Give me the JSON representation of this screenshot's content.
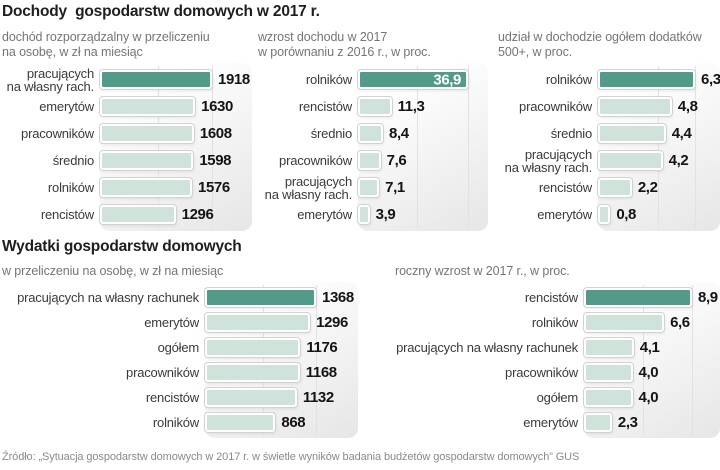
{
  "section1": {
    "title": "Dochody  gospodarstw domowych w 2017 r."
  },
  "section2": {
    "title": "Wydatki gospodarstw domowych"
  },
  "footer": {
    "source": "Źródło: „Sytuacja gospodarstw domowych w 2017 r. w świetle wyników badania budżetów gospodarstw domowych” GUS"
  },
  "colors": {
    "bar_dark": "#529a8a",
    "bar_light": "#d0e3db",
    "bar_border": "#ffffff",
    "bar_outline": "#d2d2d2",
    "subtitle_text": "#757575",
    "value_text": "#141414",
    "inside_value_text": "#ffffff"
  },
  "chart_data": [
    {
      "id": "income-per-person",
      "type": "bar",
      "orientation": "horizontal",
      "section": "Dochody gospodarstw domowych w 2017 r.",
      "subtitle": "dochód rozporządzalny w przeliczeniu\nna osobę, w zł na miesiąc",
      "unit": "zł/miesiąc",
      "xlim": [
        0,
        1918
      ],
      "grid": "faint vertical midline",
      "rows": [
        {
          "label": "pracujących\nna własny rach.",
          "value": 1918,
          "display": "1918",
          "dark": true,
          "value_inside": false
        },
        {
          "label": "emerytów",
          "value": 1630,
          "display": "1630",
          "dark": false,
          "value_inside": false
        },
        {
          "label": "pracowników",
          "value": 1608,
          "display": "1608",
          "dark": false,
          "value_inside": false
        },
        {
          "label": "średnio",
          "value": 1598,
          "display": "1598",
          "dark": false,
          "value_inside": false
        },
        {
          "label": "rolników",
          "value": 1576,
          "display": "1576",
          "dark": false,
          "value_inside": false
        },
        {
          "label": "rencistów",
          "value": 1296,
          "display": "1296",
          "dark": false,
          "value_inside": false
        }
      ]
    },
    {
      "id": "income-growth",
      "type": "bar",
      "orientation": "horizontal",
      "section": "Dochody gospodarstw domowych w 2017 r.",
      "subtitle": "wzrost dochodu w 2017\nw porównaniu z 2016 r., w proc.",
      "unit": "proc.",
      "xlim": [
        0,
        36.9
      ],
      "grid": "faint vertical midline",
      "rows": [
        {
          "label": "rolników",
          "value": 36.9,
          "display": "36,9",
          "dark": true,
          "value_inside": true
        },
        {
          "label": "rencistów",
          "value": 11.3,
          "display": "11,3",
          "dark": false,
          "value_inside": false
        },
        {
          "label": "średnio",
          "value": 8.4,
          "display": "8,4",
          "dark": false,
          "value_inside": false
        },
        {
          "label": "pracowników",
          "value": 7.6,
          "display": "7,6",
          "dark": false,
          "value_inside": false
        },
        {
          "label": "pracujących\nna własny rach.",
          "value": 7.1,
          "display": "7,1",
          "dark": false,
          "value_inside": false
        },
        {
          "label": "emerytów",
          "value": 3.9,
          "display": "3,9",
          "dark": false,
          "value_inside": false
        }
      ]
    },
    {
      "id": "500plus-share",
      "type": "bar",
      "orientation": "horizontal",
      "section": "Dochody gospodarstw domowych w 2017 r.",
      "subtitle": "udział w dochodzie ogółem dodatków\n500+, w proc.",
      "unit": "proc.",
      "xlim": [
        0,
        6.3
      ],
      "grid": "faint vertical midline",
      "rows": [
        {
          "label": "rolników",
          "value": 6.3,
          "display": "6,3",
          "dark": true,
          "value_inside": false
        },
        {
          "label": "pracowników",
          "value": 4.8,
          "display": "4,8",
          "dark": false,
          "value_inside": false
        },
        {
          "label": "średnio",
          "value": 4.4,
          "display": "4,4",
          "dark": false,
          "value_inside": false
        },
        {
          "label": "pracujących\nna własny rach.",
          "value": 4.2,
          "display": "4,2",
          "dark": false,
          "value_inside": false
        },
        {
          "label": "rencistów",
          "value": 2.2,
          "display": "2,2",
          "dark": false,
          "value_inside": false
        },
        {
          "label": "emerytów",
          "value": 0.8,
          "display": "0,8",
          "dark": false,
          "value_inside": false
        }
      ]
    },
    {
      "id": "expenses-per-person",
      "type": "bar",
      "orientation": "horizontal",
      "section": "Wydatki gospodarstw domowych",
      "subtitle": "w przeliczeniu na osobę, w zł na miesiąc",
      "unit": "zł/miesiąc",
      "xlim": [
        0,
        1368
      ],
      "grid": "faint vertical midline",
      "rows": [
        {
          "label": "pracujących na własny rachunek",
          "value": 1368,
          "display": "1368",
          "dark": true,
          "value_inside": false
        },
        {
          "label": "emerytów",
          "value": 1296,
          "display": "1296",
          "dark": false,
          "value_inside": false
        },
        {
          "label": "ogółem",
          "value": 1176,
          "display": "1176",
          "dark": false,
          "value_inside": false
        },
        {
          "label": "pracowników",
          "value": 1168,
          "display": "1168",
          "dark": false,
          "value_inside": false
        },
        {
          "label": "rencistów",
          "value": 1132,
          "display": "1132",
          "dark": false,
          "value_inside": false
        },
        {
          "label": "rolników",
          "value": 868,
          "display": "868",
          "dark": false,
          "value_inside": false
        }
      ]
    },
    {
      "id": "expenses-growth",
      "type": "bar",
      "orientation": "horizontal",
      "section": "Wydatki gospodarstw domowych",
      "subtitle": "roczny wzrost w 2017 r., w proc.",
      "unit": "proc.",
      "xlim": [
        0,
        8.9
      ],
      "grid": "faint vertical midline",
      "rows": [
        {
          "label": "rencistów",
          "value": 8.9,
          "display": "8,9",
          "dark": true,
          "value_inside": false
        },
        {
          "label": "rolników",
          "value": 6.6,
          "display": "6,6",
          "dark": false,
          "value_inside": false
        },
        {
          "label": "pracujących na własny rachunek",
          "value": 4.1,
          "display": "4,1",
          "dark": false,
          "value_inside": false
        },
        {
          "label": "pracowników",
          "value": 4.0,
          "display": "4,0",
          "dark": false,
          "value_inside": false
        },
        {
          "label": "ogółem",
          "value": 4.0,
          "display": "4,0",
          "dark": false,
          "value_inside": false
        },
        {
          "label": "emerytów",
          "value": 2.3,
          "display": "2,3",
          "dark": false,
          "value_inside": false
        }
      ]
    }
  ]
}
